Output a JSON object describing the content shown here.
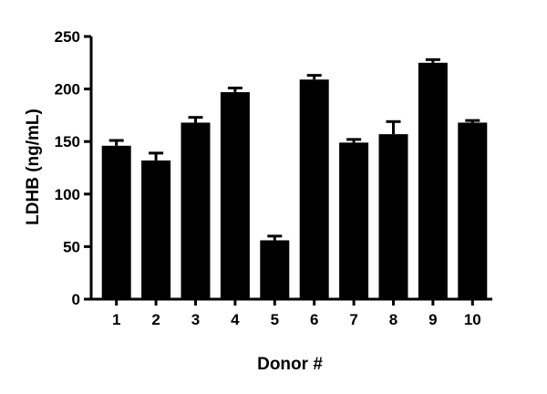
{
  "chart_data": {
    "type": "bar",
    "categories": [
      "1",
      "2",
      "3",
      "4",
      "5",
      "6",
      "7",
      "8",
      "9",
      "10"
    ],
    "values": [
      146,
      132,
      168,
      197,
      56,
      209,
      149,
      157,
      225,
      168
    ],
    "error_upper": [
      151,
      139,
      173,
      201,
      60,
      213,
      152,
      169,
      228,
      170
    ],
    "xlabel": "Donor #",
    "ylabel": "LDHB (ng/mL)",
    "ylim": [
      0,
      250
    ],
    "yticks": [
      0,
      50,
      100,
      150,
      200,
      250
    ],
    "grid": false,
    "legend": "none",
    "bar_color": "#000000"
  }
}
